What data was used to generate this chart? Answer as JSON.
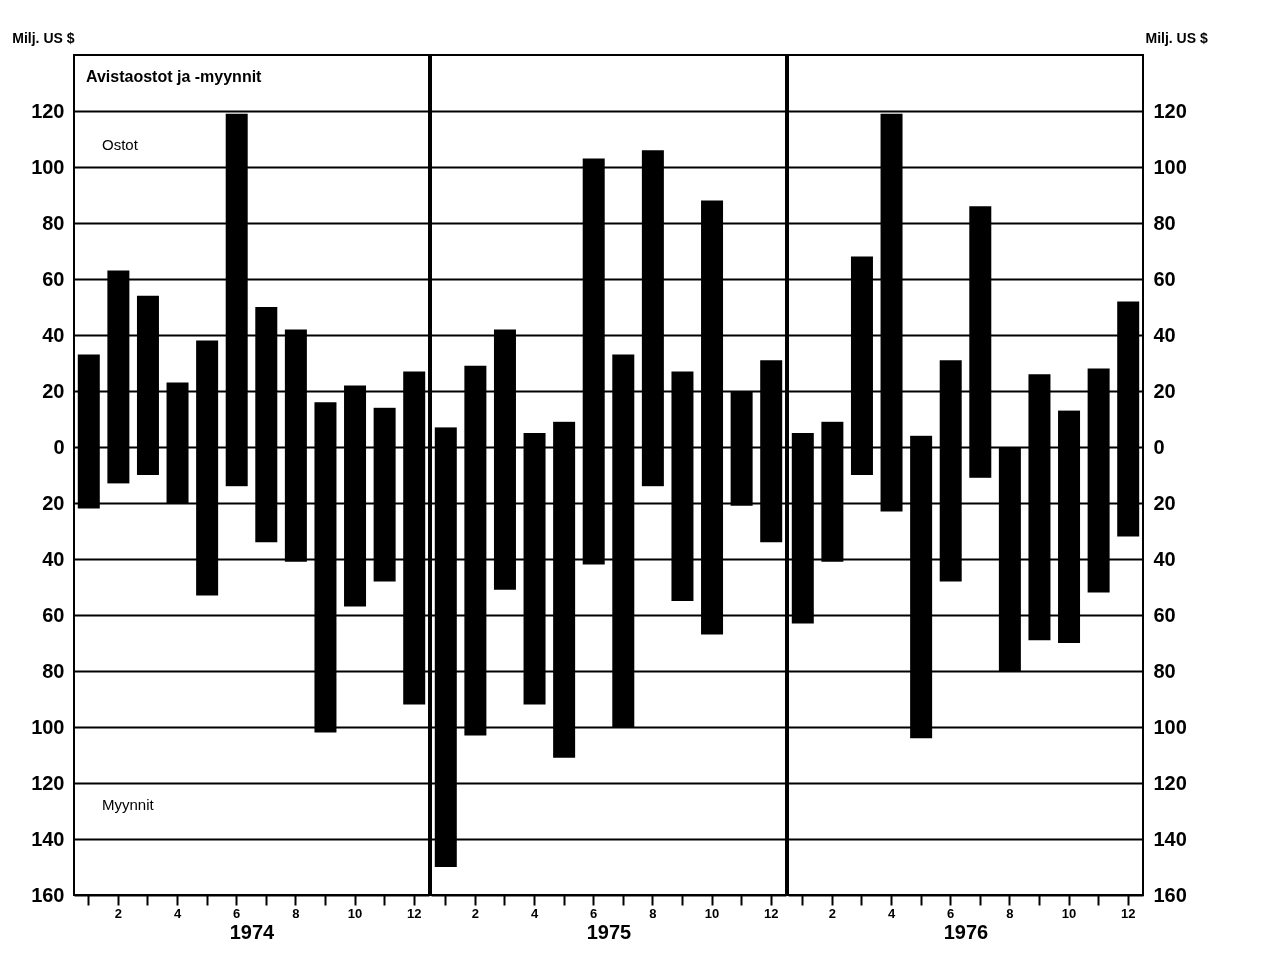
{
  "chart_data": [
    {
      "type": "bar",
      "title": "Avistaostot ja -myynnit",
      "ylabel": "Milj. US $",
      "xlabel": "1974",
      "annotations": [
        "Ostot",
        "Myynnit"
      ],
      "stacked": true,
      "categories": [
        null,
        "2",
        null,
        "4",
        null,
        "6",
        null,
        "8",
        null,
        "10",
        null,
        "12"
      ],
      "series": [
        {
          "color": "#000000",
          "values": [
            33,
            63,
            54,
            23,
            38,
            119,
            50,
            42,
            16,
            22,
            14,
            27
          ]
        },
        {
          "color": "#000000",
          "values": [
            -22,
            -13,
            -10,
            -20,
            -53,
            -14,
            -34,
            -41,
            -102,
            -57,
            -48,
            -92
          ]
        }
      ],
      "ylim": [
        -160,
        140
      ],
      "yticks": [
        {
          "value": -160,
          "label": "160"
        },
        {
          "value": -140,
          "label": "140"
        },
        {
          "value": -120,
          "label": "120"
        },
        {
          "value": -100,
          "label": "100"
        },
        {
          "value": -80,
          "label": "80"
        },
        {
          "value": -60,
          "label": "60"
        },
        {
          "value": -40,
          "label": "40"
        },
        {
          "value": -20,
          "label": "20"
        },
        0,
        20,
        40,
        60,
        80,
        100,
        120
      ],
      "grid": "y",
      "legend": false
    },
    {
      "type": "bar",
      "xlabel": "1975",
      "tick_labels": "x",
      "stacked": true,
      "categories": [
        null,
        "2",
        null,
        "4",
        null,
        "6",
        null,
        "8",
        null,
        "10",
        null,
        "12"
      ],
      "series": [
        {
          "color": "#000000",
          "values": [
            7,
            29,
            42,
            5,
            9,
            103,
            33,
            106,
            27,
            88,
            20,
            31
          ]
        },
        {
          "color": "#000000",
          "values": [
            -150,
            -103,
            -51,
            -92,
            -111,
            -42,
            -100,
            -14,
            -55,
            -67,
            -21,
            -34
          ]
        }
      ],
      "ylim": [
        -160,
        140
      ],
      "grid": "y",
      "legend": false
    },
    {
      "type": "bar",
      "y2label": "Milj. US $",
      "xlabel": "1976",
      "stacked": true,
      "categories": [
        null,
        "2",
        null,
        "4",
        null,
        "6",
        null,
        "8",
        null,
        "10",
        null,
        "12"
      ],
      "series": [
        {
          "color": "#000000",
          "axis": "y2",
          "values": [
            5,
            9,
            68,
            119,
            4,
            31,
            86,
            0,
            26,
            13,
            28,
            52
          ]
        },
        {
          "color": "#000000",
          "axis": "y2",
          "values": [
            -63,
            -41,
            -10,
            -23,
            -104,
            -48,
            -11,
            -80,
            -69,
            -70,
            -52,
            -32
          ]
        }
      ],
      "y2lim": [
        -160,
        140
      ],
      "y2ticks": [
        {
          "value": -160,
          "label": "160"
        },
        {
          "value": -140,
          "label": "140"
        },
        {
          "value": -120,
          "label": "120"
        },
        {
          "value": -100,
          "label": "100"
        },
        {
          "value": -80,
          "label": "80"
        },
        {
          "value": -60,
          "label": "60"
        },
        {
          "value": -40,
          "label": "40"
        },
        {
          "value": -20,
          "label": "20"
        },
        0,
        20,
        40,
        60,
        80,
        100,
        120
      ],
      "grid": "y",
      "legend": false
    }
  ]
}
